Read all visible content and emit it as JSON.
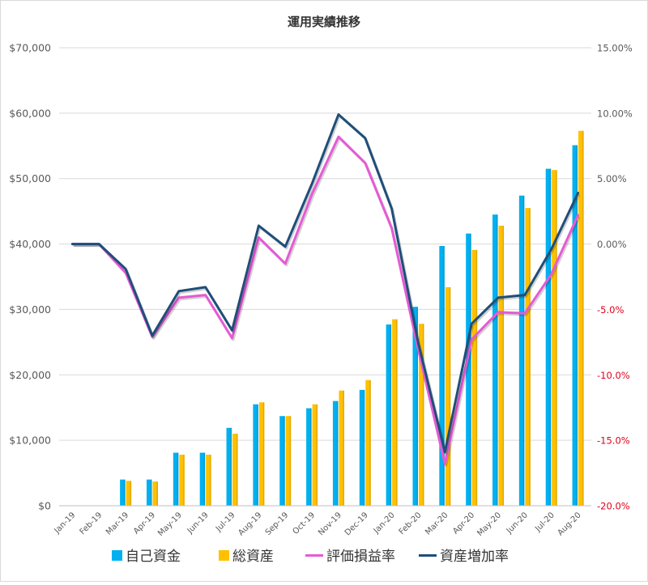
{
  "chart_data": {
    "type": "bar",
    "title": "運用実績推移",
    "categories": [
      "Jan-19",
      "Feb-19",
      "Mar-19",
      "Apr-19",
      "May-19",
      "Jun-19",
      "Jul-19",
      "Aug-19",
      "Sep-19",
      "Oct-19",
      "Nov-19",
      "Dec-19",
      "Jan-20",
      "Feb-20",
      "Mar-20",
      "Apr-20",
      "May-20",
      "Jun-20",
      "Jul-20",
      "Aug-20"
    ],
    "left_axis": {
      "min": 0,
      "max": 70000,
      "step": 10000,
      "tick_labels": [
        "$0",
        "$10,000",
        "$20,000",
        "$30,000",
        "$40,000",
        "$50,000",
        "$60,000",
        "$70,000"
      ]
    },
    "right_axis": {
      "min": -20,
      "max": 15,
      "step": 5,
      "tick_labels": [
        "-20.0%",
        "-15.0%",
        "-10.0%",
        "-5.0%",
        "0.00%",
        "5.00%",
        "10.00%",
        "15.00%"
      ],
      "negative_color": "#e0001b",
      "positive_color": "#595959"
    },
    "grid": "horizontal",
    "legend_position": "bottom",
    "series": [
      {
        "name": "自己資金",
        "kind": "bar",
        "axis": "left",
        "color": "#00b0f0",
        "values": [
          0,
          0,
          4000,
          4000,
          8100,
          8100,
          11900,
          15500,
          13700,
          14900,
          16000,
          17700,
          27700,
          30400,
          39700,
          41600,
          44500,
          47400,
          51500,
          55100
        ]
      },
      {
        "name": "総資産",
        "kind": "bar",
        "axis": "left",
        "color": "#ffc000",
        "values": [
          0,
          0,
          3800,
          3700,
          7800,
          7800,
          11000,
          15800,
          13700,
          15500,
          17600,
          19200,
          28500,
          27800,
          33400,
          39100,
          42800,
          45500,
          51300,
          57300
        ]
      },
      {
        "name": "評価損益率",
        "kind": "line",
        "axis": "right",
        "color": "#e55ad6",
        "values": [
          0.0,
          0.0,
          -2.2,
          -7.1,
          -4.1,
          -3.9,
          -7.2,
          0.5,
          -1.5,
          3.8,
          8.2,
          6.2,
          1.2,
          -8.1,
          -16.8,
          -7.3,
          -5.2,
          -5.3,
          -2.3,
          2.2
        ]
      },
      {
        "name": "資産増加率",
        "kind": "line",
        "axis": "right",
        "color": "#1f4e79",
        "values": [
          0.0,
          0.0,
          -1.9,
          -7.0,
          -3.6,
          -3.3,
          -6.6,
          1.4,
          -0.2,
          4.6,
          9.9,
          8.1,
          2.7,
          -7.6,
          -15.9,
          -6.1,
          -4.1,
          -3.9,
          -0.4,
          3.9
        ]
      }
    ]
  }
}
